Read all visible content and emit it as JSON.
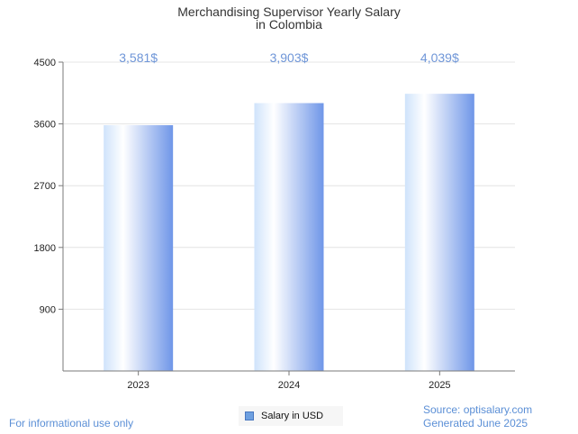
{
  "chart_data": {
    "type": "bar",
    "title_lines": [
      "Merchandising Supervisor Yearly Salary",
      "in Colombia"
    ],
    "categories": [
      "2023",
      "2024",
      "2025"
    ],
    "series": [
      {
        "name": "Salary in USD",
        "values": [
          3581,
          3903,
          4039
        ]
      }
    ],
    "data_labels": [
      "3,581$",
      "3,903$",
      "4,039$"
    ],
    "y_ticks": [
      "900",
      "1800",
      "2700",
      "3600",
      "4500"
    ],
    "y_tick_values": [
      900,
      1800,
      2700,
      3600,
      4500
    ],
    "ylim": [
      0,
      4500
    ],
    "grid": true,
    "legend_position": "bottom",
    "bar_color": "#6f96e8",
    "label_color": "#6f96d8"
  },
  "footer": {
    "disclaimer": "For informational use only",
    "source": "Source: optisalary.com",
    "generated": "Generated June 2025"
  }
}
